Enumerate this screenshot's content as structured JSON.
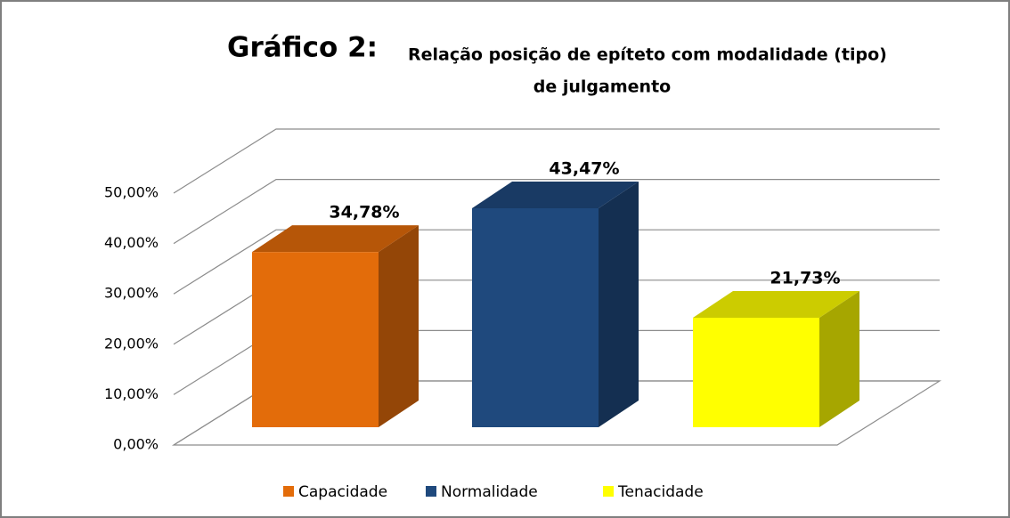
{
  "chart_data": {
    "type": "bar3d",
    "title": "Gráfico 2:",
    "subtitle_lines": [
      "Relação posição de epíteto com modalidade (tipo)",
      "de julgamento"
    ],
    "categories": [
      "Capacidade",
      "Normalidade",
      "Tenacidade"
    ],
    "series": [
      {
        "name": "Capacidade",
        "color": "#e36c0a",
        "values": [
          34.78,
          null,
          null
        ],
        "value_labels": [
          "34,78%",
          null,
          null
        ]
      },
      {
        "name": "Normalidade",
        "color": "#1f497d",
        "values": [
          null,
          43.47,
          null
        ],
        "value_labels": [
          null,
          "43,47%",
          null
        ]
      },
      {
        "name": "Tenacidade",
        "color": "#ffff00",
        "values": [
          null,
          null,
          21.73
        ],
        "value_labels": [
          null,
          null,
          "21,73%"
        ]
      }
    ],
    "ylim": [
      0,
      50
    ],
    "yticks": [
      {
        "value": 0,
        "label": "0,00%"
      },
      {
        "value": 10,
        "label": "10,00%"
      },
      {
        "value": 20,
        "label": "20,00%"
      },
      {
        "value": 30,
        "label": "30,00%"
      },
      {
        "value": 40,
        "label": "40,00%"
      },
      {
        "value": 50,
        "label": "50,00%"
      }
    ],
    "grid": true,
    "legend": "bottom"
  }
}
